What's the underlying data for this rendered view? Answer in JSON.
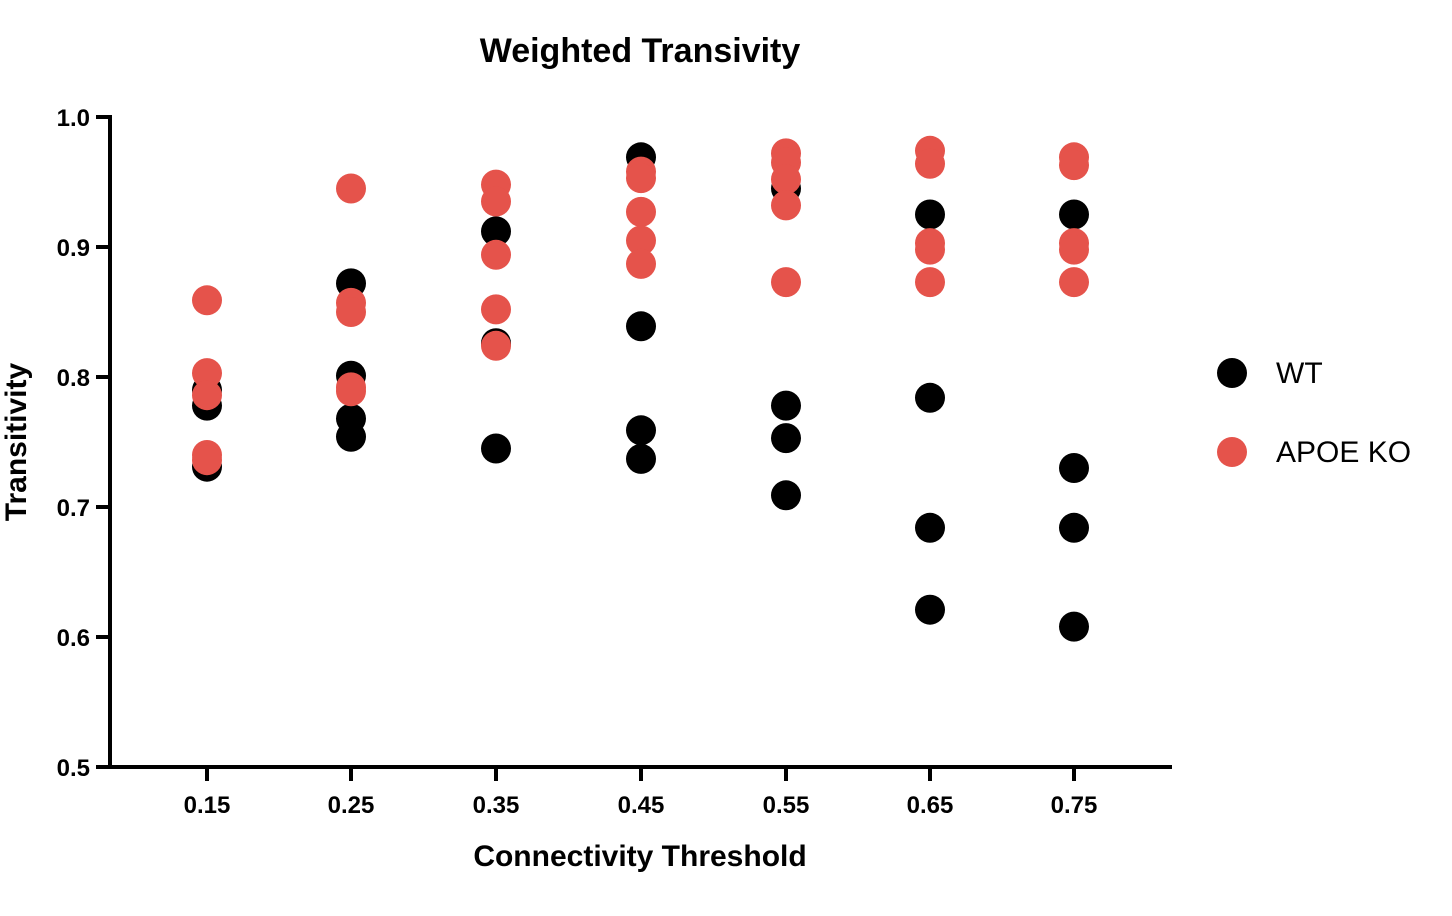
{
  "chart_data": {
    "type": "scatter",
    "title": "Weighted Transivity",
    "xlabel": "Connectivity Threshold",
    "ylabel": "Transitivity",
    "categories": [
      "0.15",
      "0.25",
      "0.35",
      "0.45",
      "0.55",
      "0.65",
      "0.75"
    ],
    "ylim": [
      0.5,
      1.0
    ],
    "yticks": [
      "0.5",
      "0.6",
      "0.7",
      "0.8",
      "0.9",
      "1.0"
    ],
    "legend_position": "right",
    "series": [
      {
        "name": "WT",
        "color": "#000000",
        "points": [
          {
            "x": "0.15",
            "values": [
              0.79,
              0.778,
              0.731
            ]
          },
          {
            "x": "0.25",
            "values": [
              0.872,
              0.801,
              0.768,
              0.754
            ]
          },
          {
            "x": "0.35",
            "values": [
              0.912,
              0.826,
              0.745
            ]
          },
          {
            "x": "0.45",
            "values": [
              0.969,
              0.839,
              0.759,
              0.737
            ]
          },
          {
            "x": "0.55",
            "values": [
              0.945,
              0.778,
              0.753,
              0.709
            ]
          },
          {
            "x": "0.65",
            "values": [
              0.925,
              0.784,
              0.684,
              0.621
            ]
          },
          {
            "x": "0.75",
            "values": [
              0.925,
              0.73,
              0.684,
              0.608
            ]
          }
        ]
      },
      {
        "name": "APOE KO",
        "color": "#e5534b",
        "points": [
          {
            "x": "0.15",
            "values": [
              0.859,
              0.803,
              0.786,
              0.74,
              0.736
            ]
          },
          {
            "x": "0.25",
            "values": [
              0.945,
              0.857,
              0.85,
              0.792,
              0.789
            ]
          },
          {
            "x": "0.35",
            "values": [
              0.948,
              0.935,
              0.894,
              0.852,
              0.824
            ]
          },
          {
            "x": "0.45",
            "values": [
              0.958,
              0.953,
              0.927,
              0.905,
              0.887
            ]
          },
          {
            "x": "0.55",
            "values": [
              0.972,
              0.965,
              0.952,
              0.932,
              0.873
            ]
          },
          {
            "x": "0.65",
            "values": [
              0.974,
              0.964,
              0.903,
              0.898,
              0.873
            ]
          },
          {
            "x": "0.75",
            "values": [
              0.969,
              0.963,
              0.903,
              0.898,
              0.873
            ]
          }
        ]
      }
    ]
  }
}
